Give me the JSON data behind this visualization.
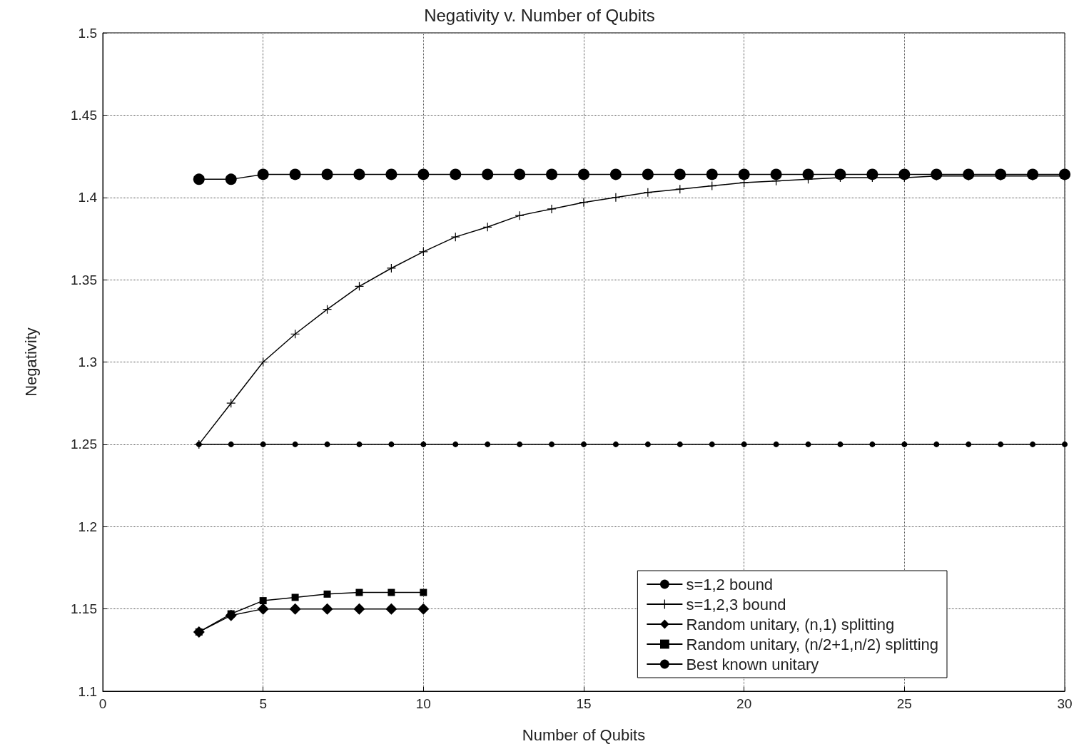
{
  "chart_data": {
    "type": "line",
    "title": "Negativity v. Number of Qubits",
    "xlabel": "Number of Qubits",
    "ylabel": "Negativity",
    "xlim": [
      0,
      30
    ],
    "xticks": [
      0,
      5,
      10,
      15,
      20,
      25,
      30
    ],
    "ylim": [
      1.1,
      1.5
    ],
    "yticks": [
      1.1,
      1.15,
      1.2,
      1.25,
      1.3,
      1.35,
      1.4,
      1.45,
      1.5
    ],
    "grid": true,
    "legend": "bottom right",
    "line_style": "solid",
    "series": [
      {
        "name": "s=1,2 bound",
        "color": "#000000",
        "marker": "circle",
        "x": [
          3,
          4,
          5,
          6,
          7,
          8,
          9,
          10,
          11,
          12,
          13,
          14,
          15,
          16,
          17,
          18,
          19,
          20,
          21,
          22,
          23,
          24,
          25,
          26,
          27,
          28,
          29,
          30
        ],
        "values": [
          1.411,
          1.411,
          1.414,
          1.414,
          1.414,
          1.414,
          1.414,
          1.414,
          1.414,
          1.414,
          1.414,
          1.414,
          1.414,
          1.414,
          1.414,
          1.414,
          1.414,
          1.414,
          1.414,
          1.414,
          1.414,
          1.414,
          1.414,
          1.414,
          1.414,
          1.414,
          1.414,
          1.414
        ]
      },
      {
        "name": "s=1,2,3 bound",
        "color": "#000000",
        "marker": "cross",
        "x": [
          3,
          4,
          5,
          6,
          7,
          8,
          9,
          10,
          11,
          12,
          13,
          14,
          15,
          16,
          17,
          18,
          19,
          20,
          21,
          22,
          23,
          24,
          25,
          26,
          27,
          28,
          29,
          30
        ],
        "values": [
          1.25,
          1.275,
          1.3,
          1.317,
          1.332,
          1.346,
          1.357,
          1.367,
          1.376,
          1.382,
          1.389,
          1.393,
          1.397,
          1.4,
          1.403,
          1.405,
          1.407,
          1.409,
          1.41,
          1.411,
          1.412,
          1.412,
          1.412,
          1.413,
          1.413,
          1.413,
          1.413,
          1.413
        ]
      },
      {
        "name": "Random unitary, (n,1) splitting",
        "color": "#000000",
        "marker": "diamond",
        "x": [
          3,
          4,
          5,
          6,
          7,
          8,
          9,
          10
        ],
        "values": [
          1.136,
          1.146,
          1.15,
          1.15,
          1.15,
          1.15,
          1.15,
          1.15
        ]
      },
      {
        "name": "Random unitary, (n/2+1,n/2) splitting",
        "color": "#000000",
        "marker": "square",
        "x": [
          3,
          4,
          5,
          6,
          7,
          8,
          9,
          10
        ],
        "values": [
          1.136,
          1.147,
          1.155,
          1.157,
          1.159,
          1.16,
          1.16,
          1.16
        ]
      },
      {
        "name": "Best known unitary",
        "color": "#000000",
        "marker": "circle",
        "x": [
          3,
          4,
          5,
          6,
          7,
          8,
          9,
          10,
          11,
          12,
          13,
          14,
          15,
          16,
          17,
          18,
          19,
          20,
          21,
          22,
          23,
          24,
          25,
          26,
          27,
          28,
          29,
          30
        ],
        "values": [
          1.25,
          1.25,
          1.25,
          1.25,
          1.25,
          1.25,
          1.25,
          1.25,
          1.25,
          1.25,
          1.25,
          1.25,
          1.25,
          1.25,
          1.25,
          1.25,
          1.25,
          1.25,
          1.25,
          1.25,
          1.25,
          1.25,
          1.25,
          1.25,
          1.25,
          1.25,
          1.25,
          1.25
        ]
      }
    ]
  }
}
